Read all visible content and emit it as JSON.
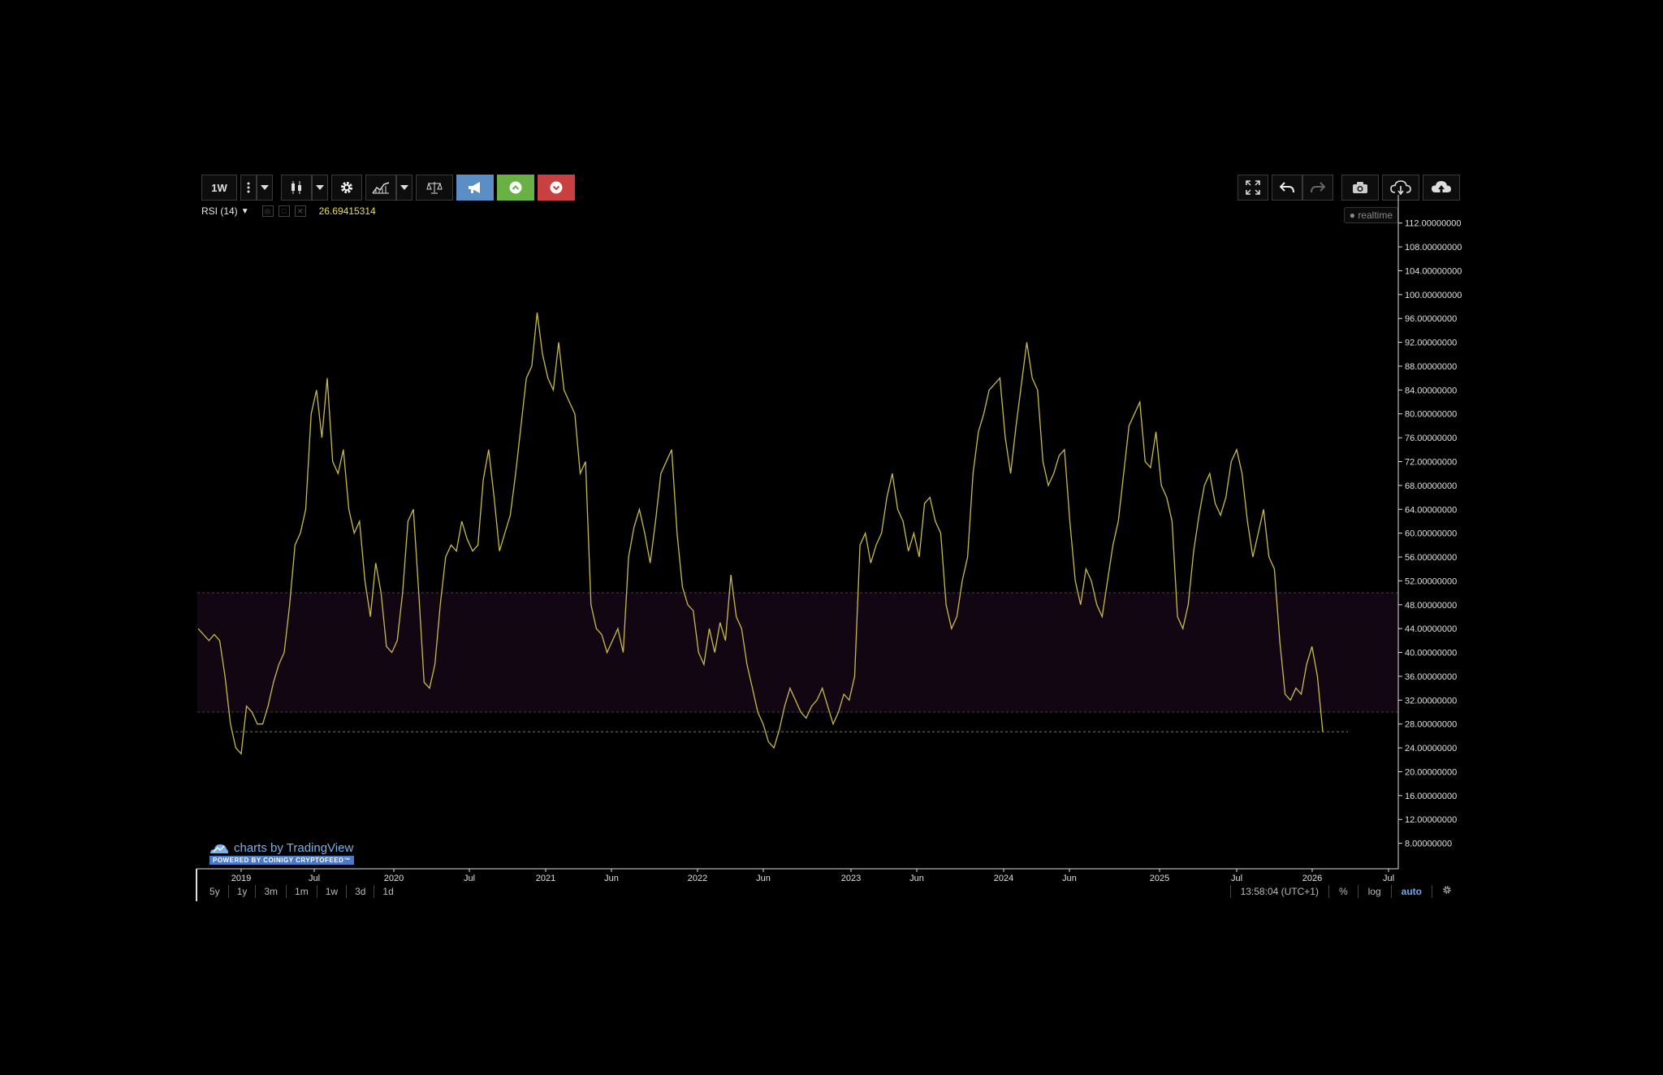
{
  "toolbar": {
    "interval": "1W",
    "buttons": [
      "more-icon",
      "dropdown-icon",
      "candles-icon",
      "dropdown-icon",
      "gear-icon",
      "indicators-icon",
      "dropdown-icon",
      "scales-icon",
      "megaphone-icon",
      "up-arrow-icon",
      "down-arrow-icon"
    ],
    "right_buttons": [
      "fullscreen-icon",
      "undo-icon",
      "redo-icon",
      "camera-icon",
      "cloud-download-icon",
      "cloud-upload-icon"
    ]
  },
  "legend": {
    "name": "RSI (14)",
    "value": "26.69415314"
  },
  "realtime_label": "realtime",
  "watermark": {
    "text": "charts by TradingView",
    "sub": "POWERED BY COINIGY CRYPTOFEED™"
  },
  "bottom": {
    "ranges": [
      "5y",
      "1y",
      "3m",
      "1m",
      "1w",
      "3d",
      "1d"
    ],
    "time": "13:58:04 (UTC+1)",
    "percent": "%",
    "log": "log",
    "auto": "auto"
  },
  "colors": {
    "line": "#c9bb4a",
    "band": "#120612",
    "axis_text": "#e0e0e0"
  },
  "chart_data": {
    "type": "line",
    "title": "",
    "series": [
      {
        "name": "RSI (14)",
        "x": "weekly 2018-11 to 2026-01",
        "values": [
          44,
          43,
          42,
          43,
          42,
          36,
          28,
          24,
          23,
          31,
          30,
          28,
          28,
          31,
          35,
          38,
          40,
          48,
          58,
          60,
          64,
          80,
          84,
          76,
          86,
          72,
          70,
          74,
          64,
          60,
          62,
          52,
          46,
          55,
          50,
          41,
          40,
          42,
          50,
          62,
          64,
          50,
          35,
          34,
          38,
          48,
          56,
          58,
          57,
          62,
          59,
          57,
          58,
          69,
          74,
          66,
          57,
          60,
          63,
          70,
          78,
          86,
          88,
          97,
          90,
          86,
          84,
          92,
          84,
          82,
          80,
          70,
          72,
          48,
          44,
          43,
          40,
          42,
          44,
          40,
          56,
          61,
          64,
          60,
          55,
          62,
          70,
          72,
          74,
          60,
          51,
          48,
          47,
          40,
          38,
          44,
          40,
          45,
          42,
          53,
          46,
          44,
          38,
          34,
          30,
          28,
          25,
          24,
          27,
          31,
          34,
          32,
          30,
          29,
          31,
          32,
          34,
          31,
          28,
          30,
          33,
          32,
          36,
          58,
          60,
          55,
          58,
          60,
          66,
          70,
          64,
          62,
          57,
          60,
          56,
          65,
          66,
          62,
          60,
          48,
          44,
          46,
          52,
          56,
          70,
          77,
          80,
          84,
          85,
          86,
          76,
          70,
          78,
          85,
          92,
          86,
          84,
          72,
          68,
          70,
          73,
          74,
          62,
          52,
          48,
          54,
          52,
          48,
          46,
          52,
          58,
          62,
          70,
          78,
          80,
          82,
          72,
          71,
          77,
          68,
          66,
          62,
          46,
          44,
          48,
          57,
          63,
          68,
          70,
          65,
          63,
          66,
          72,
          74,
          70,
          62,
          56,
          60,
          64,
          56,
          54,
          42,
          33,
          32,
          34,
          33,
          38,
          41,
          36,
          26.7
        ]
      }
    ],
    "x_ticks": [
      "2019",
      "Jul",
      "2020",
      "Jul",
      "2021",
      "Jun",
      "2022",
      "Jun",
      "2023",
      "Jun",
      "2024",
      "Jun",
      "2025",
      "Jul",
      "2026",
      "Jul"
    ],
    "y_ticks": [
      "112.00000000",
      "108.00000000",
      "104.00000000",
      "100.00000000",
      "96.00000000",
      "92.00000000",
      "88.00000000",
      "84.00000000",
      "80.00000000",
      "76.00000000",
      "72.00000000",
      "68.00000000",
      "64.00000000",
      "60.00000000",
      "56.00000000",
      "52.00000000",
      "48.00000000",
      "44.00000000",
      "40.00000000",
      "36.00000000",
      "32.00000000",
      "28.00000000",
      "24.00000000",
      "20.00000000",
      "16.00000000",
      "12.00000000",
      "8.00000000"
    ],
    "ylim": [
      4,
      114
    ],
    "bands": [
      {
        "from": 30,
        "to": 50
      }
    ],
    "price_line": 26.69415314,
    "grid": false,
    "ylabel": "",
    "xlabel": ""
  }
}
